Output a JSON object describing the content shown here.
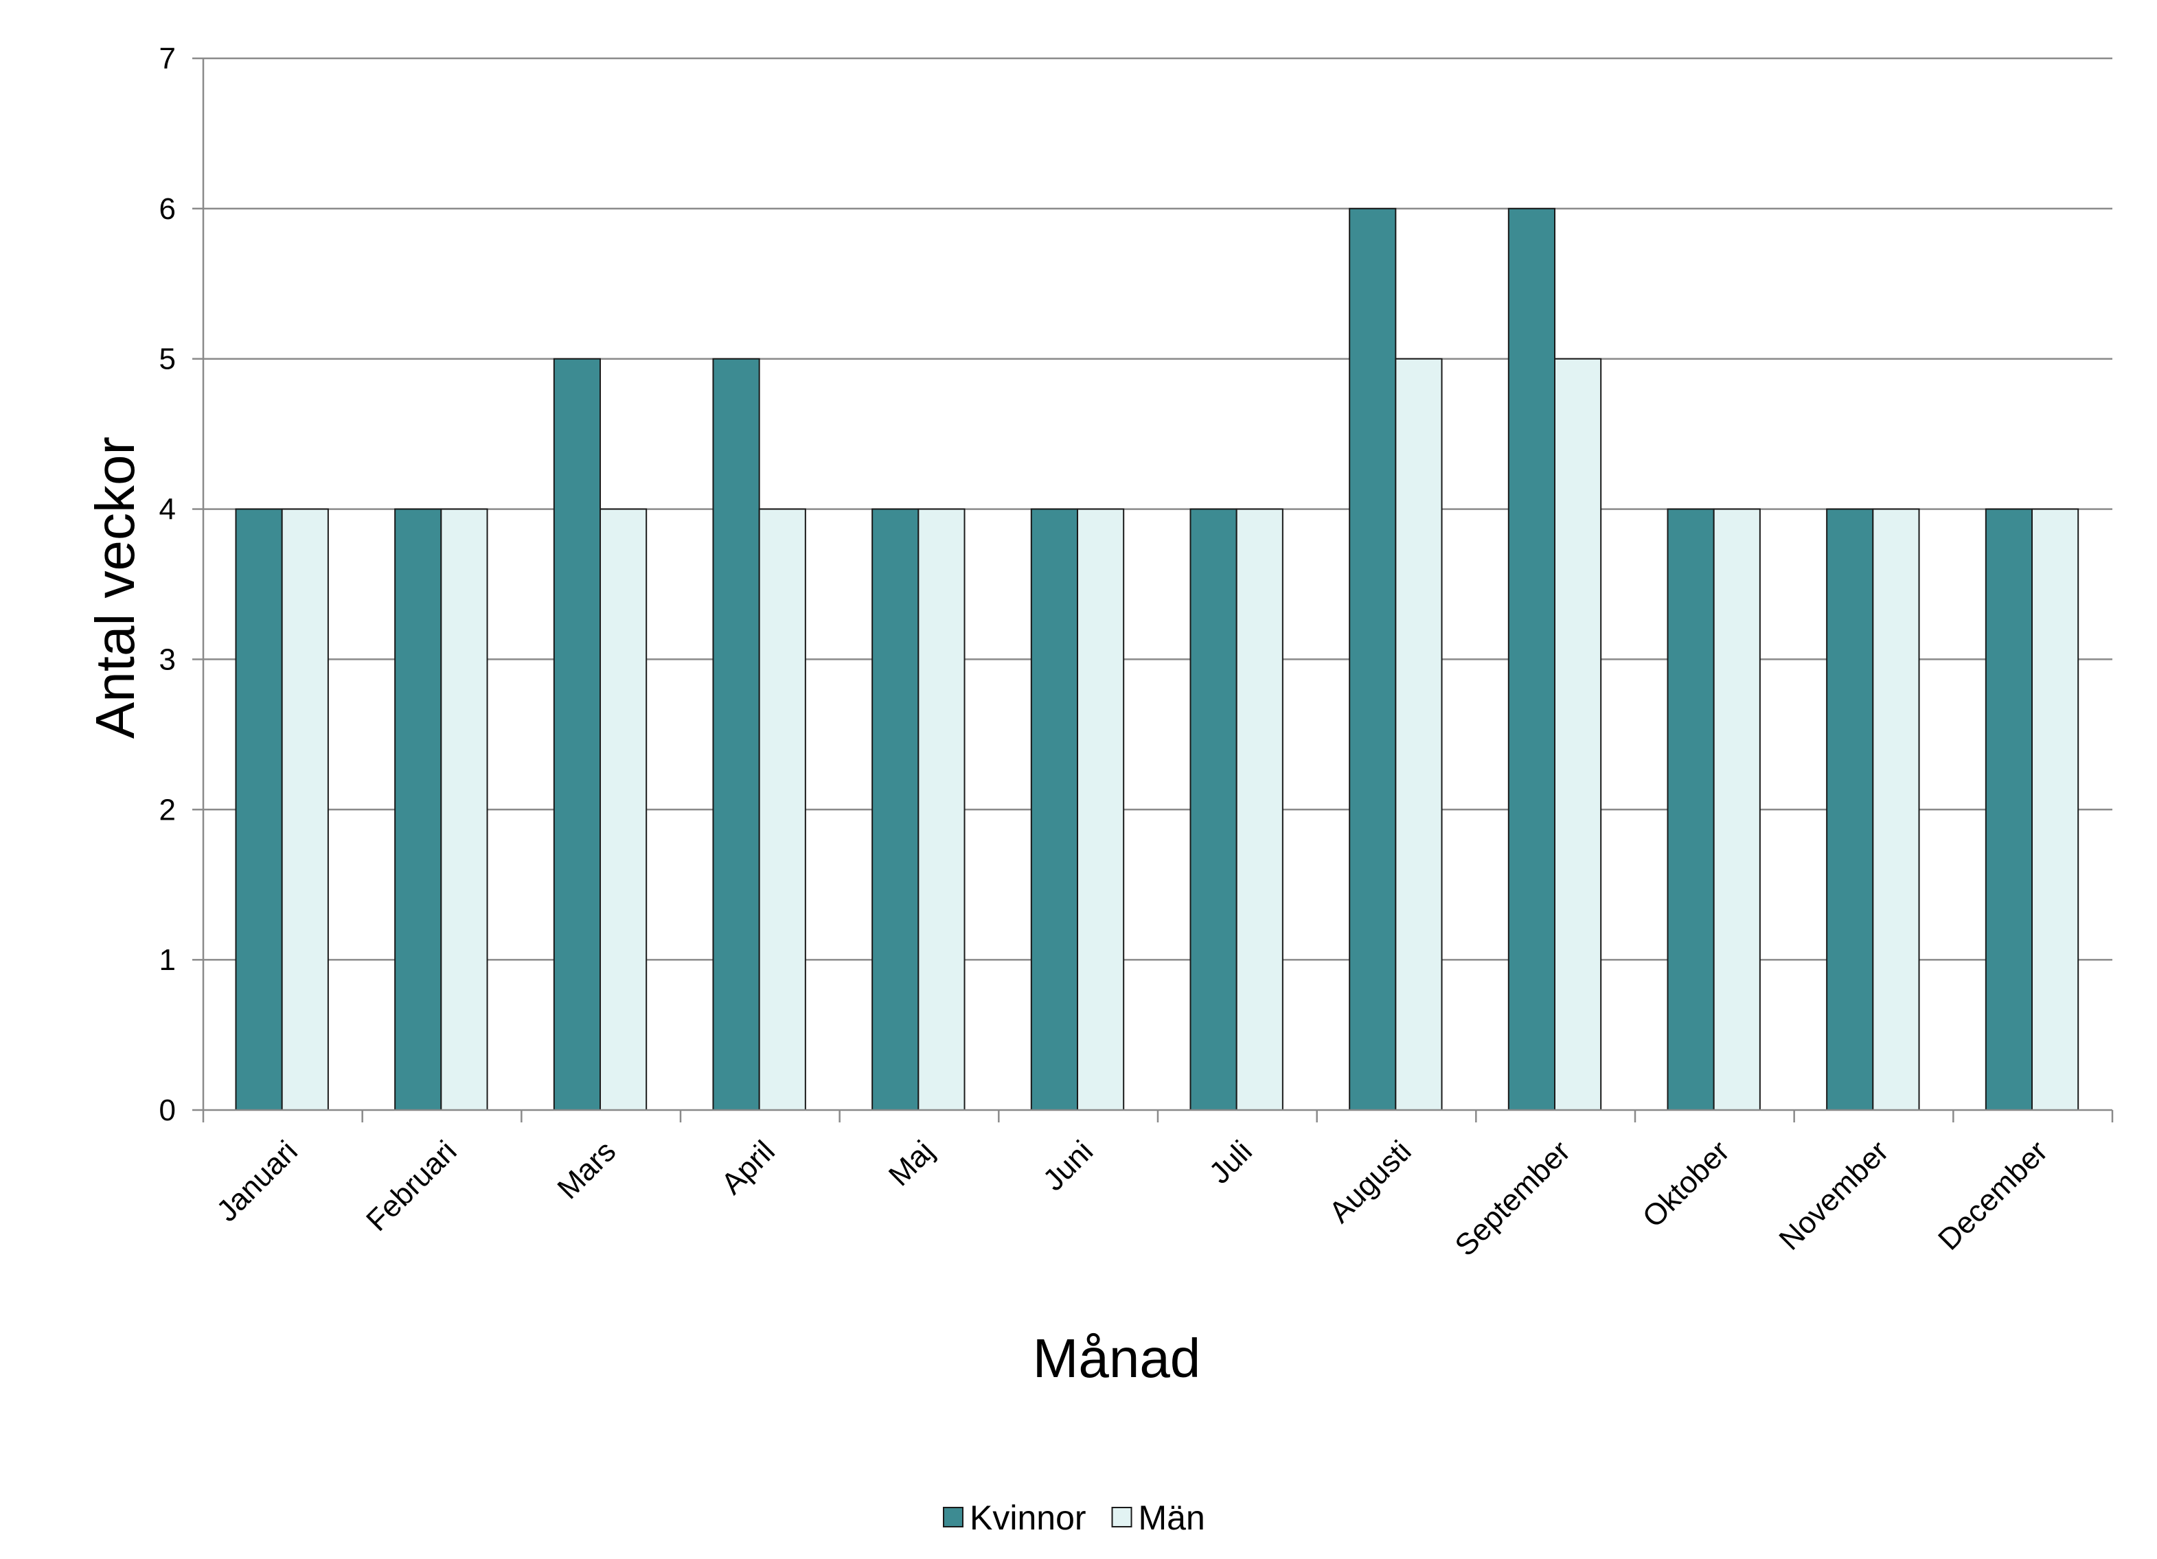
{
  "chart_data": {
    "type": "bar",
    "categories": [
      "Januari",
      "Februari",
      "Mars",
      "April",
      "Maj",
      "Juni",
      "Juli",
      "Augusti",
      "September",
      "Oktober",
      "November",
      "December"
    ],
    "series": [
      {
        "name": "Kvinnor",
        "values": [
          4,
          4,
          5,
          5,
          4,
          4,
          4,
          6,
          6,
          4,
          4,
          4
        ],
        "color": "#3D8B92"
      },
      {
        "name": "Män",
        "values": [
          4,
          4,
          4,
          4,
          4,
          4,
          4,
          5,
          5,
          4,
          4,
          4
        ],
        "color": "#E2F3F3"
      }
    ],
    "title": "",
    "xlabel": "Månad",
    "ylabel": "Antal veckor",
    "ylim": [
      0,
      7
    ],
    "yticks": [
      "0",
      "1",
      "2",
      "3",
      "4",
      "5",
      "6",
      "7"
    ],
    "grid": true,
    "legend": "bottom"
  }
}
